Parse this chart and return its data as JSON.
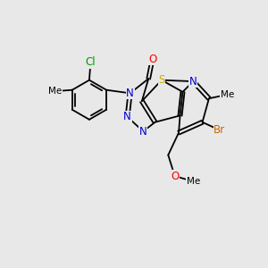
{
  "bg_color": "#e8e8e8",
  "atom_colors": {
    "C": "#000000",
    "N": "#0000cc",
    "O": "#ff0000",
    "S": "#ccaa00",
    "Br": "#cc6600",
    "Cl": "#009900",
    "H": "#000000"
  },
  "font_size_atom": 8.5,
  "font_size_small": 7.5,
  "xlim": [
    0,
    10
  ],
  "ylim": [
    0,
    10
  ]
}
